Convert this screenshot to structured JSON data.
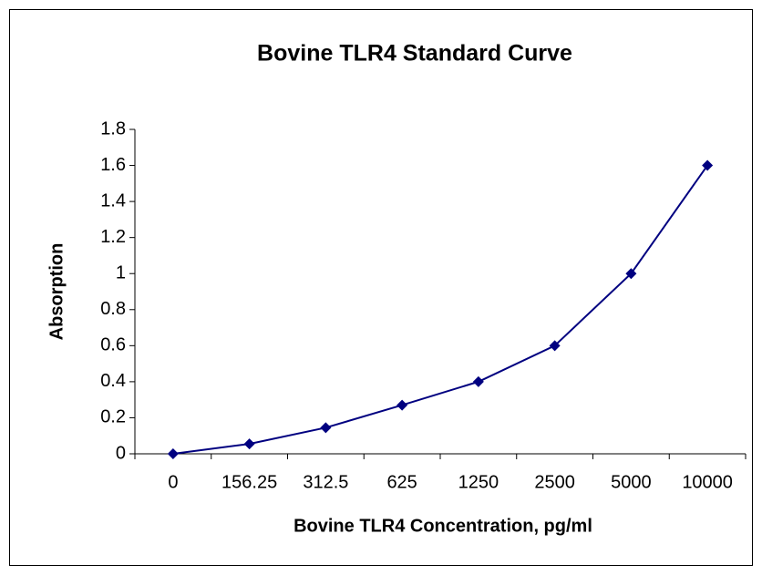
{
  "chart_data": {
    "type": "line",
    "title": "Bovine TLR4 Standard Curve",
    "x_label": "Bovine TLR4 Concentration, pg/ml",
    "y_label": "Absorption",
    "categories": [
      "0",
      "156.25",
      "312.5",
      "625",
      "1250",
      "2500",
      "5000",
      "10000"
    ],
    "series": [
      {
        "name": "Absorption",
        "color": "#000080",
        "values": [
          0,
          0.055,
          0.145,
          0.27,
          0.4,
          0.6,
          1.0,
          1.6
        ]
      }
    ],
    "ylim": [
      0,
      1.8
    ],
    "yticks": [
      0,
      0.2,
      0.4,
      0.6,
      0.8,
      1,
      1.2,
      1.4,
      1.6,
      1.8
    ],
    "grid": false,
    "legend": false
  }
}
